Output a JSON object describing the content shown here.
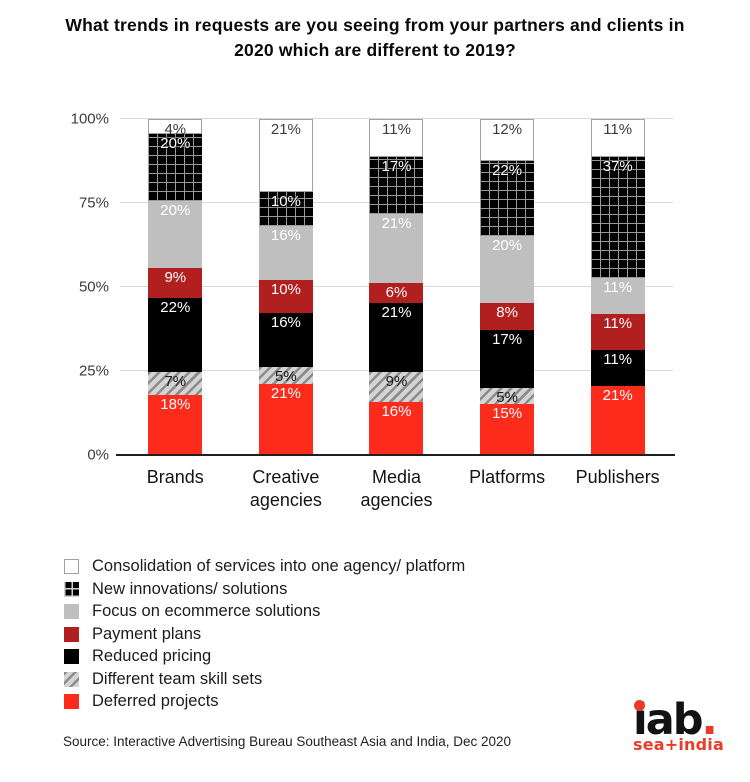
{
  "title": "What trends in requests are you seeing from your partners and clients in 2020 which are different to 2019?",
  "source": "Source: Interactive Advertising Bureau Southeast Asia and India, Dec 2020",
  "logo": {
    "word": "iab",
    "period": ".",
    "subtext": "sea+india",
    "red": "#e93c28",
    "black": "#121212"
  },
  "colors": {
    "bright_red": "#fc2b1c",
    "dark_red": "#b11f1f",
    "gray": "#bfbfbf",
    "black": "#000000",
    "white_border": "#98a2b0",
    "gridline": "#d8d8d8",
    "axis_line": "#1f1f1f"
  },
  "chart_data": {
    "type": "bar",
    "stacked": true,
    "unit": "%",
    "grid": true,
    "legend_position": "bottom-left",
    "categories": [
      "Brands",
      "Creative agencies",
      "Media agencies",
      "Platforms",
      "Publishers"
    ],
    "ylim": [
      0,
      100
    ],
    "y_ticks": [
      0,
      25,
      50,
      75,
      100
    ],
    "y_tick_labels": [
      "0%",
      "25%",
      "50%",
      "75%",
      "100%"
    ],
    "stack_order_note": "series listed top-to-bottom as rendered in each bar; values are percentages per category",
    "series": [
      {
        "name": "Consolidation of services into one agency/ platform",
        "pattern": "plain",
        "fill": "#ffffff",
        "border": "#98a2b0",
        "label_color": "#3c3c3c",
        "values": [
          4,
          21,
          11,
          12,
          11
        ]
      },
      {
        "name": "New innovations/ solutions",
        "pattern": "grid",
        "fill": "#000000",
        "line": "#9a9a9a",
        "label_color": "#ffffff",
        "values": [
          20,
          10,
          17,
          22,
          37
        ]
      },
      {
        "name": "Focus on ecommerce solutions",
        "pattern": "solid",
        "fill": "#bfbfbf",
        "label_color": "#ffffff",
        "values": [
          20,
          16,
          21,
          20,
          11
        ]
      },
      {
        "name": "Payment plans",
        "pattern": "solid",
        "fill": "#b11f1f",
        "label_color": "#ffffff",
        "values": [
          9,
          10,
          6,
          8,
          11
        ]
      },
      {
        "name": "Reduced pricing",
        "pattern": "solid",
        "fill": "#000000",
        "label_color": "#ffffff",
        "values": [
          22,
          16,
          21,
          17,
          11
        ]
      },
      {
        "name": "Different team skill sets",
        "pattern": "hatch",
        "fill": "#d4d4d4",
        "line": "#8c8c8c",
        "label_color": "#1d1d1d",
        "values": [
          7,
          5,
          9,
          5,
          0
        ]
      },
      {
        "name": "Deferred projects",
        "pattern": "solid",
        "fill": "#fc2b1c",
        "label_color": "#ffffff",
        "values": [
          18,
          21,
          16,
          15,
          21
        ]
      }
    ]
  }
}
